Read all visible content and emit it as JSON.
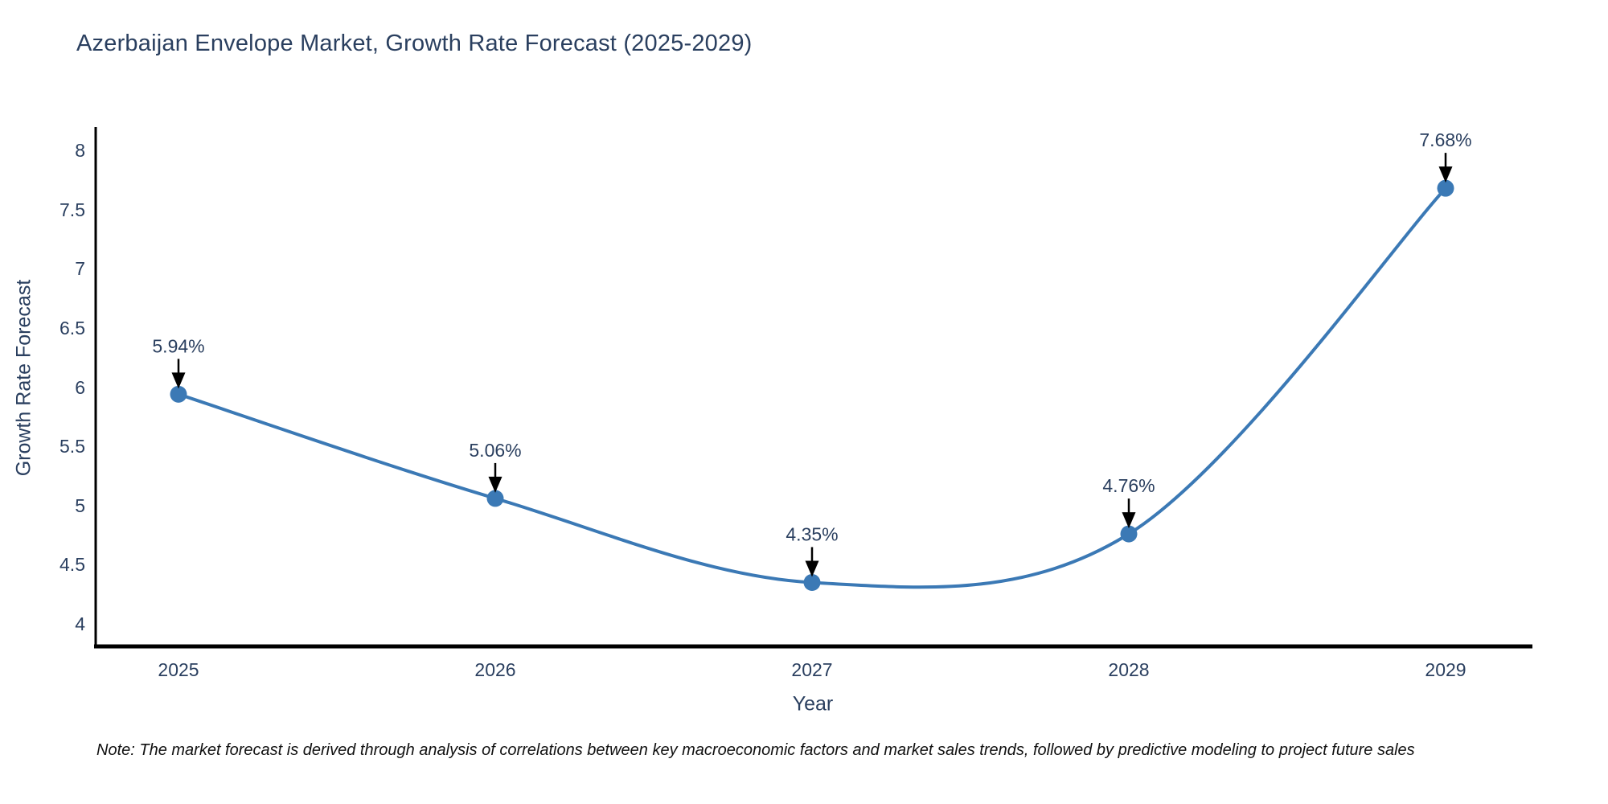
{
  "title": "Azerbaijan Envelope Market, Growth Rate Forecast (2025-2029)",
  "note": "Note: The market forecast is derived through analysis of correlations between key macroeconomic factors and market sales trends, followed by predictive modeling to project future sales",
  "chart_data": {
    "type": "line",
    "title": "Azerbaijan Envelope Market, Growth Rate Forecast (2025-2029)",
    "xlabel": "Year",
    "ylabel": "Growth Rate Forecast",
    "categories": [
      "2025",
      "2026",
      "2027",
      "2028",
      "2029"
    ],
    "values": [
      5.94,
      5.06,
      4.35,
      4.76,
      7.68
    ],
    "point_labels": [
      "5.94%",
      "5.06%",
      "4.35%",
      "4.76%",
      "7.68%"
    ],
    "yticks": [
      4,
      4.5,
      5,
      5.5,
      6,
      6.5,
      7,
      7.5,
      8
    ],
    "ylim": [
      3.8,
      8.2
    ],
    "line_shape": "spline",
    "grid": false,
    "legend_position": "none",
    "colors": {
      "line": "#3b79b5",
      "marker": "#3b79b5",
      "annotation_arrow": "#000000",
      "axis": "#000000",
      "title_text": "#2a3f5f",
      "tick_text": "#2a3f5f",
      "note_text": "#111111"
    }
  }
}
